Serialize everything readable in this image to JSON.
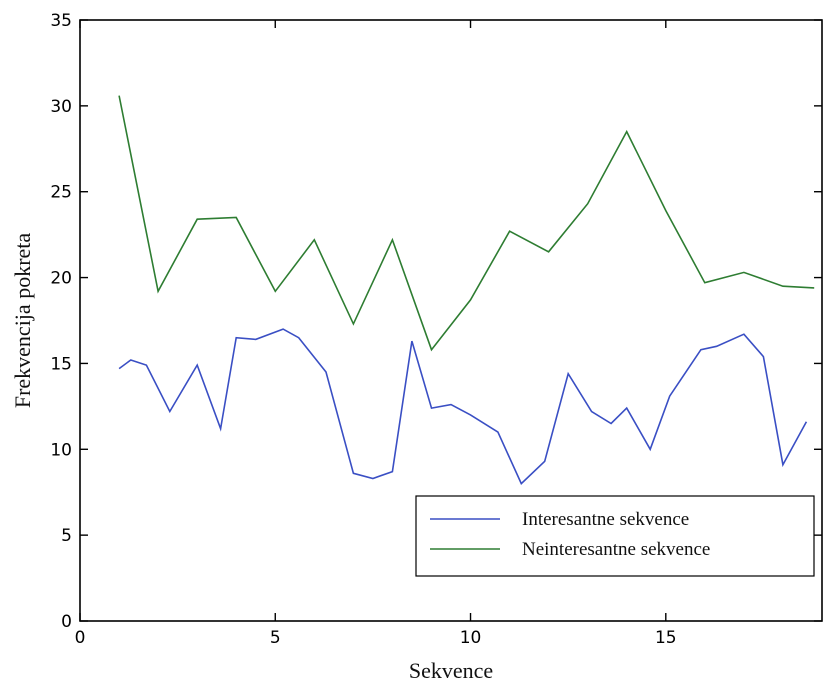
{
  "chart_data": {
    "type": "line",
    "title": "",
    "xlabel": "Sekvence",
    "ylabel": "Frekvencija pokreta",
    "xlim": [
      0,
      19
    ],
    "ylim": [
      0,
      35
    ],
    "xticks": [
      0,
      5,
      10,
      15
    ],
    "yticks": [
      0,
      5,
      10,
      15,
      20,
      25,
      30,
      35
    ],
    "grid": false,
    "legend_position": "bottom-right",
    "series": [
      {
        "name": "Interesantne sekvence",
        "color": "#3a4fc4",
        "x": [
          1,
          1.3,
          1.7,
          2.3,
          3,
          3.6,
          4,
          4.5,
          5.2,
          5.6,
          6.3,
          7,
          7.5,
          8,
          8.5,
          9,
          9.5,
          10,
          10.7,
          11.3,
          11.9,
          12.5,
          13.1,
          13.6,
          14,
          14.6,
          15.1,
          15.9,
          16.3,
          17,
          17.5,
          18,
          18.6
        ],
        "values": [
          14.7,
          15.2,
          14.9,
          12.2,
          14.9,
          11.2,
          16.5,
          16.4,
          17.0,
          16.5,
          14.5,
          8.6,
          8.3,
          8.7,
          16.3,
          12.4,
          12.6,
          12.0,
          11.0,
          8.0,
          9.3,
          14.4,
          12.2,
          11.5,
          12.4,
          10.0,
          13.1,
          15.8,
          16.0,
          16.7,
          15.4,
          9.1,
          11.6
        ]
      },
      {
        "name": "Neinteresantne sekvence",
        "color": "#2e7d32",
        "x": [
          1,
          2,
          3,
          4,
          5,
          6,
          7,
          8,
          9,
          10,
          11,
          12,
          13,
          14,
          15,
          16,
          17,
          18,
          18.8
        ],
        "values": [
          30.6,
          19.2,
          23.4,
          23.5,
          19.2,
          22.2,
          17.3,
          22.2,
          15.8,
          18.7,
          22.7,
          21.5,
          24.3,
          28.5,
          23.9,
          19.7,
          20.3,
          19.5,
          19.4
        ]
      }
    ]
  }
}
